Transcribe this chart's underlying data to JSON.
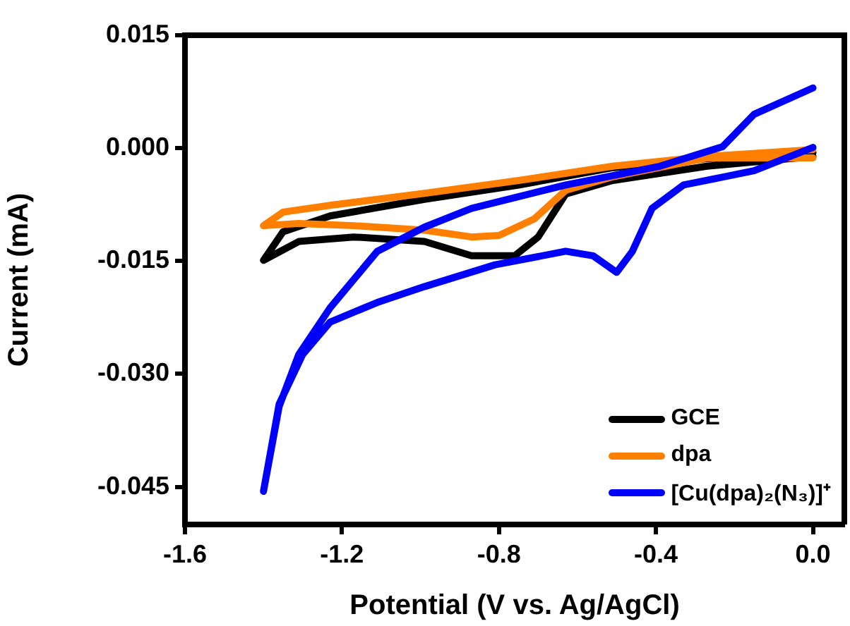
{
  "chart_data": {
    "type": "line",
    "xlabel": "Potential (V vs. Ag/AgCl)",
    "ylabel": "Current (mA)",
    "xlim": [
      -1.6,
      0.08
    ],
    "xticks": [
      -1.6,
      -1.2,
      -0.8,
      -0.4,
      {
        "value": 0,
        "label": "0.0"
      }
    ],
    "ylim": [
      -0.05,
      0.015
    ],
    "yticks": [
      -0.045,
      {
        "value": -0.03,
        "label": "-0.030"
      },
      -0.015,
      {
        "value": 0,
        "label": "0.000"
      },
      0.015
    ],
    "grid": false,
    "legend": "bottom right",
    "marker": "none",
    "line_style": "solid",
    "series": [
      {
        "name": "GCE",
        "color": "#000000",
        "x": [
          0.0,
          -0.27,
          -0.51,
          -0.63,
          -0.7,
          -0.76,
          -0.87,
          -0.99,
          -1.17,
          -1.31,
          -1.4,
          -1.35,
          -1.23,
          -0.99,
          -0.75,
          -0.51,
          -0.27,
          0.0
        ],
        "values": [
          -0.0011,
          -0.0024,
          -0.0043,
          -0.0061,
          -0.0118,
          -0.0143,
          -0.0143,
          -0.0124,
          -0.0118,
          -0.0124,
          -0.0149,
          -0.0111,
          -0.009,
          -0.0068,
          -0.0049,
          -0.0026,
          -0.0014,
          -0.0006
        ]
      },
      {
        "name": "dpa",
        "color": "#ff7f00",
        "x": [
          0.0,
          -0.27,
          -0.51,
          -0.63,
          -0.71,
          -0.8,
          -0.87,
          -0.99,
          -1.17,
          -1.31,
          -1.4,
          -1.35,
          -1.23,
          -0.99,
          -0.75,
          -0.51,
          -0.27,
          0.0
        ],
        "values": [
          -0.0013,
          -0.0013,
          -0.0038,
          -0.0056,
          -0.0094,
          -0.0116,
          -0.0118,
          -0.0109,
          -0.0103,
          -0.01,
          -0.0103,
          -0.0085,
          -0.0076,
          -0.006,
          -0.0043,
          -0.0024,
          -0.0011,
          -0.0002
        ]
      },
      {
        "name": "[Cu(dpa)₂(N₃)]⁺",
        "color": "#0000ff",
        "x": [
          0.0,
          -0.15,
          -0.23,
          -0.39,
          -0.63,
          -0.87,
          -0.99,
          -1.11,
          -1.23,
          -1.31,
          -1.36,
          -1.4,
          -1.36,
          -1.3,
          -1.23,
          -1.11,
          -0.99,
          -0.81,
          -0.63,
          -0.56,
          -0.5,
          -0.46,
          -0.41,
          -0.33,
          -0.15,
          0.0
        ],
        "values": [
          0.008,
          0.0045,
          0.0002,
          -0.0024,
          -0.0049,
          -0.008,
          -0.0105,
          -0.0137,
          -0.0212,
          -0.0274,
          -0.0343,
          -0.0456,
          -0.034,
          -0.0274,
          -0.0231,
          -0.0205,
          -0.0184,
          -0.0155,
          -0.0137,
          -0.0143,
          -0.0165,
          -0.0137,
          -0.008,
          -0.0049,
          -0.003,
          0.0001
        ]
      }
    ]
  }
}
